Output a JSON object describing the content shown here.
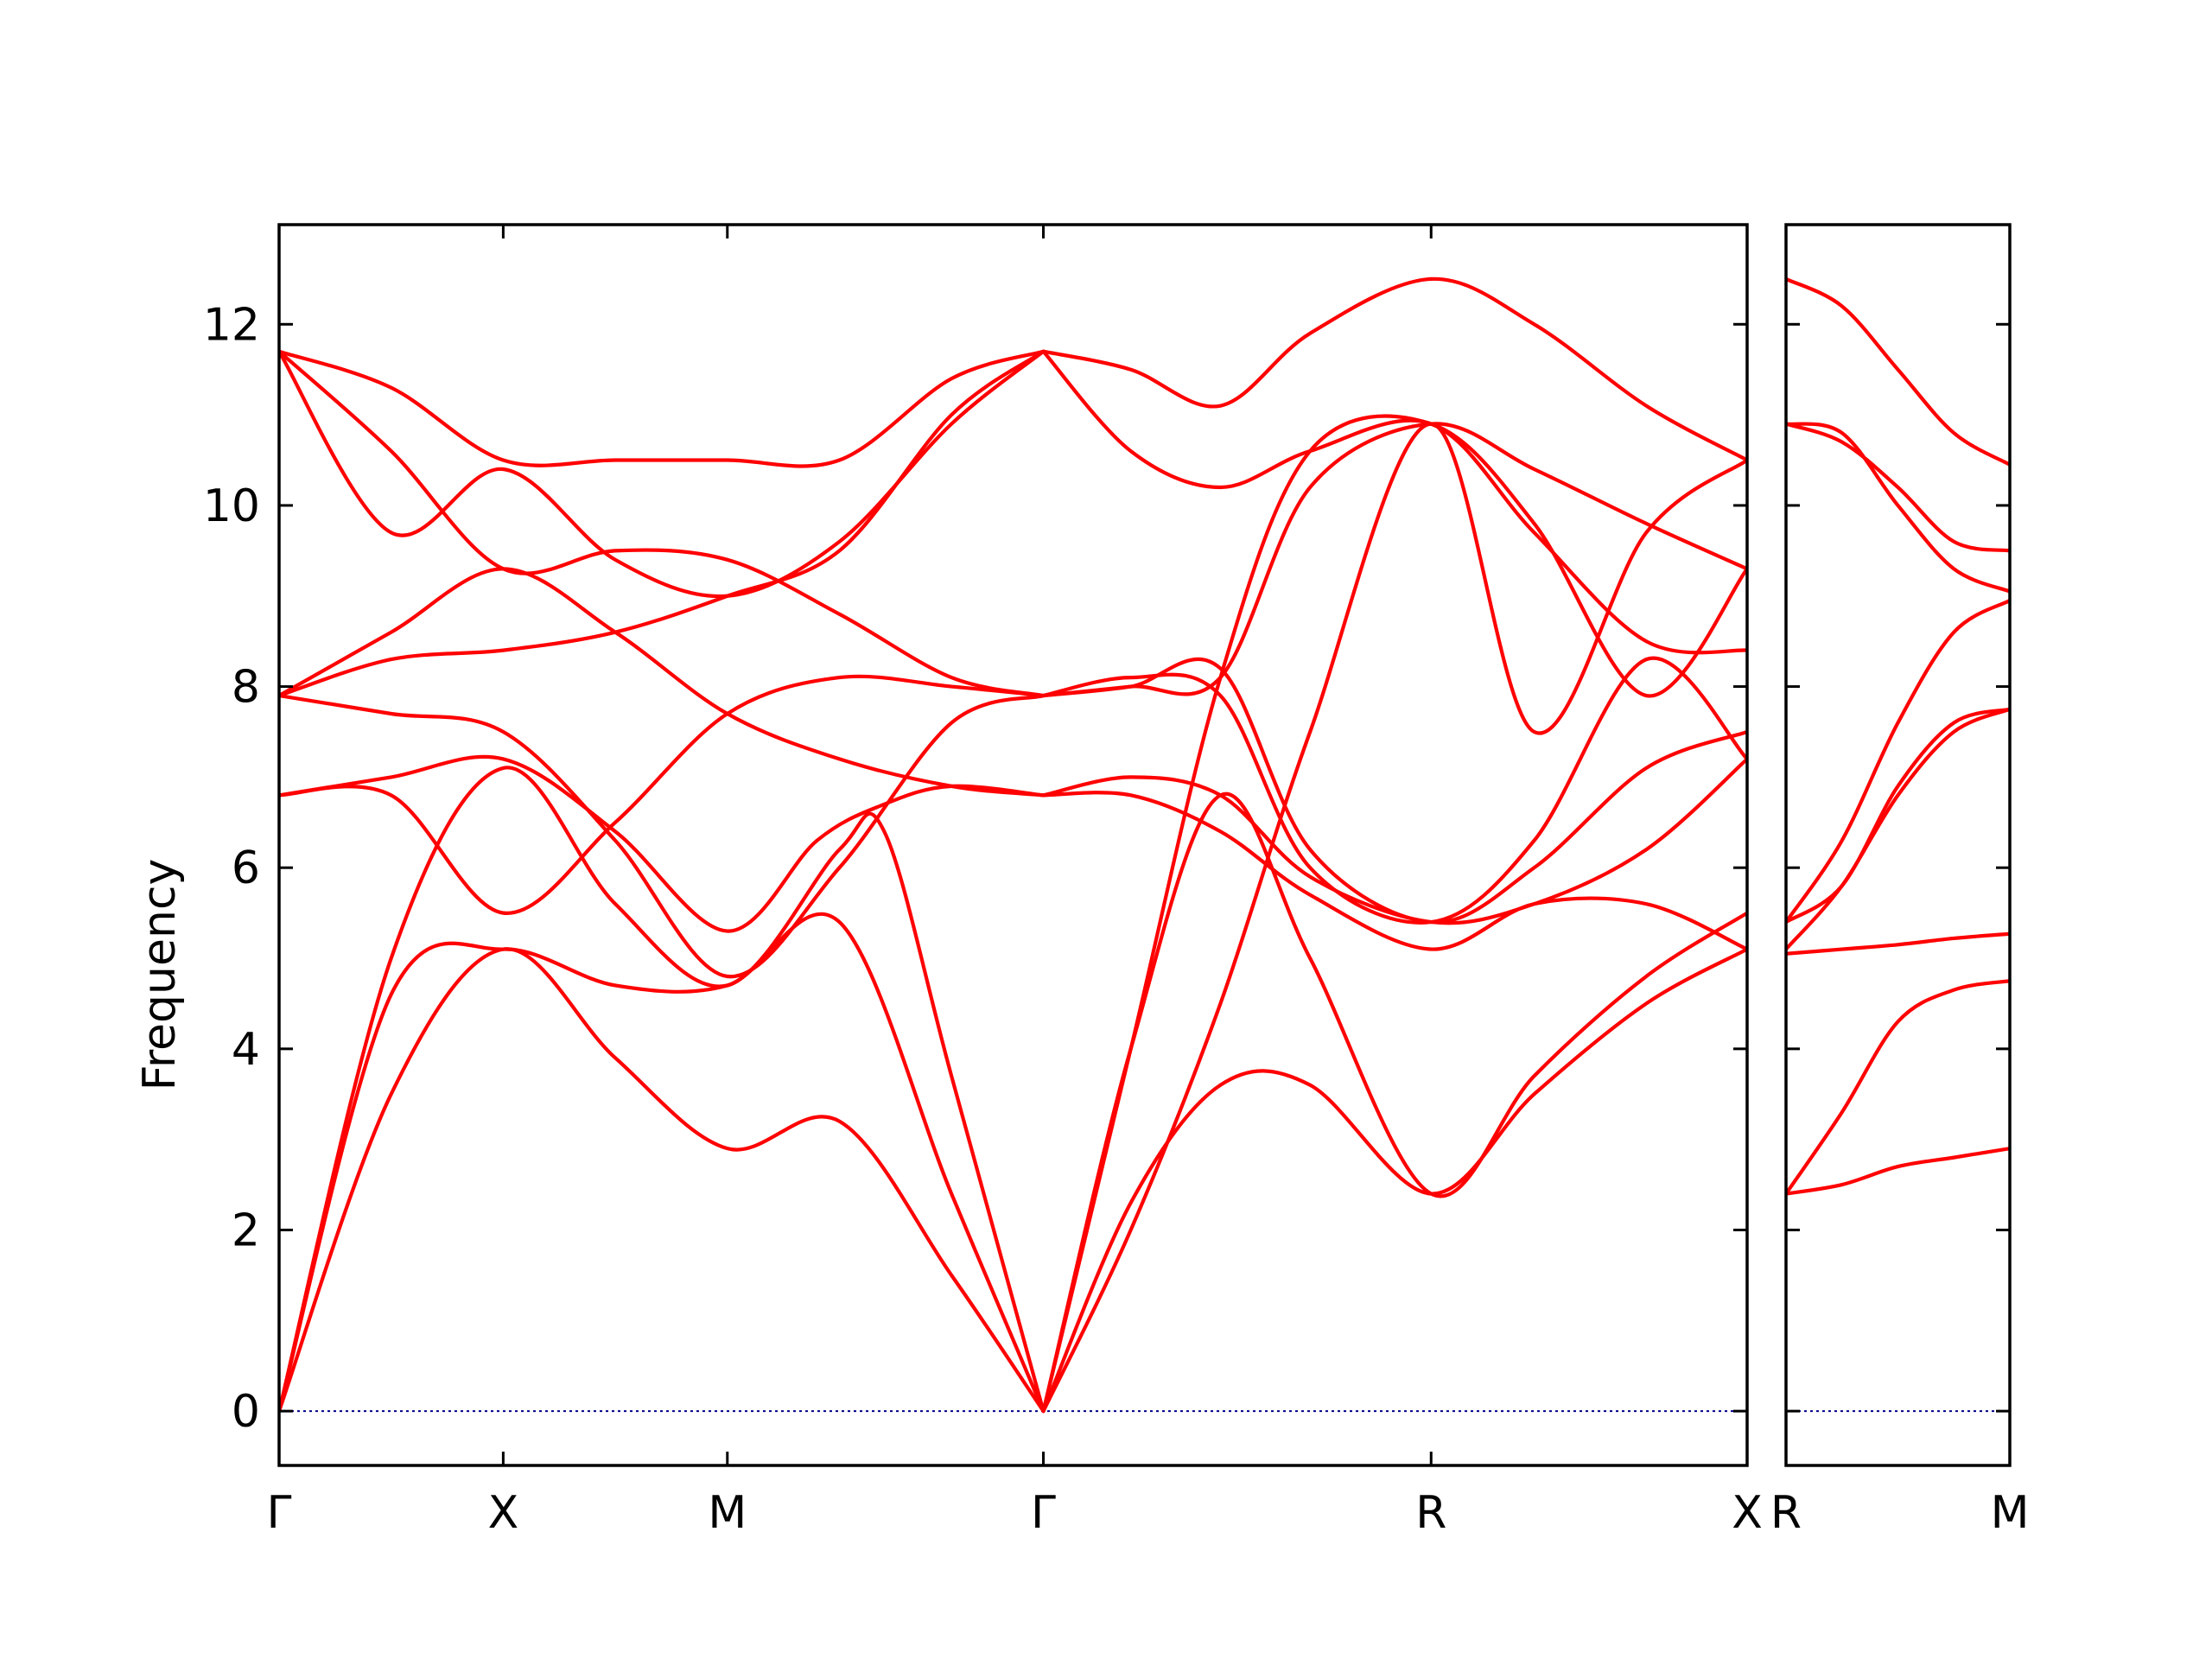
{
  "chart_data": [
    {
      "type": "line",
      "panel": "left",
      "xlabel": "",
      "ylabel": "Frequency",
      "ylim": [
        -0.6,
        13.1
      ],
      "yticks": [
        0,
        2,
        4,
        6,
        8,
        10,
        12
      ],
      "ytick_labels": [
        "0",
        "2",
        "4",
        "6",
        "8",
        "10",
        "12"
      ],
      "path_labels": [
        "Γ",
        "X",
        "M",
        "Γ",
        "R",
        "X"
      ],
      "path_positions": [
        0,
        1,
        2,
        3.41,
        5.14,
        6.55
      ],
      "xlim": [
        0,
        6.55
      ],
      "line_color": "#ff0000",
      "zero_line_color": "#00008b",
      "series": [
        {
          "x": [
            0,
            0.5,
            1,
            1.5,
            2,
            2.5,
            3,
            3.41
          ],
          "values": [
            0,
            3.5,
            5.1,
            3.9,
            2.9,
            3.2,
            1.5,
            0
          ]
        },
        {
          "x": [
            0,
            0.5,
            1,
            1.5,
            2,
            2.5,
            3,
            3.41
          ],
          "values": [
            0,
            4.6,
            5.1,
            4.7,
            4.7,
            5.4,
            2.4,
            0
          ]
        },
        {
          "x": [
            0,
            0.5,
            1,
            1.5,
            2,
            2.5,
            2.7,
            3,
            3.41
          ],
          "values": [
            0,
            5.0,
            7.1,
            5.6,
            4.7,
            6.2,
            6.4,
            3.7,
            0
          ]
        },
        {
          "x": [
            0,
            0.5,
            1,
            1.5,
            2,
            2.4,
            2.7,
            3,
            3.41
          ],
          "values": [
            6.8,
            7.0,
            7.2,
            6.4,
            5.3,
            6.3,
            6.7,
            6.9,
            6.8
          ]
        },
        {
          "x": [
            0,
            0.5,
            1,
            1.5,
            2,
            2.5,
            3,
            3.41
          ],
          "values": [
            6.8,
            6.8,
            5.5,
            6.5,
            7.7,
            8.1,
            8.0,
            7.9
          ]
        },
        {
          "x": [
            0,
            0.5,
            1,
            1.5,
            2,
            2.5,
            3,
            3.41
          ],
          "values": [
            7.9,
            7.7,
            7.5,
            6.3,
            4.8,
            6.0,
            7.6,
            7.9
          ]
        },
        {
          "x": [
            0,
            0.5,
            1,
            1.5,
            2,
            2.5,
            3,
            3.41
          ],
          "values": [
            7.9,
            8.6,
            9.3,
            8.6,
            7.7,
            7.2,
            6.9,
            6.8
          ]
        },
        {
          "x": [
            0,
            0.5,
            1,
            1.5,
            2,
            2.5,
            3,
            3.41
          ],
          "values": [
            7.9,
            8.3,
            8.4,
            8.6,
            9.0,
            9.5,
            11.0,
            11.7
          ]
        },
        {
          "x": [
            0,
            0.5,
            1,
            1.5,
            2,
            2.5,
            3,
            3.41
          ],
          "values": [
            11.7,
            10.6,
            9.3,
            9.5,
            9.4,
            8.8,
            8.1,
            7.9
          ]
        },
        {
          "x": [
            0,
            0.5,
            1,
            1.5,
            2,
            2.5,
            3,
            3.41
          ],
          "values": [
            11.7,
            9.7,
            10.4,
            9.4,
            9.0,
            9.6,
            10.9,
            11.7
          ]
        },
        {
          "x": [
            0,
            0.5,
            1,
            1.5,
            2,
            2.5,
            3,
            3.41
          ],
          "values": [
            11.7,
            11.3,
            10.5,
            10.5,
            10.5,
            10.5,
            11.4,
            11.7
          ]
        },
        {
          "x": [
            3.41,
            3.8,
            4.2,
            4.6,
            5.14,
            5.6,
            6.1,
            6.55
          ],
          "values": [
            0,
            2.3,
            3.6,
            3.6,
            2.4,
            3.5,
            4.5,
            5.1
          ]
        },
        {
          "x": [
            3.41,
            3.8,
            4.2,
            4.6,
            5.14,
            5.6,
            6.1,
            6.55
          ],
          "values": [
            0,
            4.0,
            6.8,
            5.0,
            2.4,
            3.7,
            4.8,
            5.5
          ]
        },
        {
          "x": [
            3.41,
            3.8,
            4.2,
            4.6,
            5.14,
            5.6,
            6.1,
            6.55
          ],
          "values": [
            6.8,
            6.8,
            6.4,
            5.7,
            5.1,
            5.6,
            5.6,
            5.1
          ]
        },
        {
          "x": [
            3.41,
            3.8,
            4.2,
            4.6,
            5.14,
            5.6,
            6.1,
            6.55
          ],
          "values": [
            6.8,
            7.0,
            6.8,
            5.9,
            5.4,
            5.6,
            6.2,
            7.2
          ]
        },
        {
          "x": [
            3.41,
            3.8,
            4.2,
            4.6,
            5.14,
            5.6,
            6.1,
            6.55
          ],
          "values": [
            7.9,
            8.0,
            8.2,
            6.2,
            5.4,
            6.0,
            7.1,
            7.5
          ]
        },
        {
          "x": [
            3.41,
            3.8,
            4.2,
            4.6,
            5.14,
            5.6,
            6.1,
            6.55
          ],
          "values": [
            7.9,
            8.1,
            7.9,
            6.0,
            5.4,
            6.3,
            8.3,
            7.2
          ]
        },
        {
          "x": [
            3.41,
            3.8,
            4.2,
            4.6,
            5.14,
            5.6,
            6.1,
            6.55
          ],
          "values": [
            0,
            4.0,
            8.1,
            10.6,
            10.9,
            9.8,
            7.9,
            9.3
          ]
        },
        {
          "x": [
            3.41,
            3.8,
            4.2,
            4.6,
            5.14,
            5.6,
            6.1,
            6.55
          ],
          "values": [
            11.7,
            10.6,
            10.2,
            10.6,
            10.9,
            9.7,
            8.5,
            8.4
          ]
        },
        {
          "x": [
            3.41,
            3.8,
            4.2,
            4.6,
            5.14,
            5.6,
            6.1,
            6.55
          ],
          "values": [
            11.7,
            11.5,
            11.1,
            11.9,
            12.5,
            12.0,
            11.1,
            10.5
          ]
        },
        {
          "x": [
            3.41,
            3.8,
            4.2,
            4.6,
            5.14,
            5.6,
            6.1,
            6.55
          ],
          "values": [
            7.9,
            8.0,
            8.1,
            10.2,
            10.9,
            10.4,
            9.8,
            9.3
          ]
        },
        {
          "x": [
            3.41,
            3.8,
            4.2,
            4.6,
            5.14,
            5.6,
            6.1,
            6.55
          ],
          "values": [
            0,
            2.0,
            4.5,
            7.5,
            10.9,
            7.5,
            9.7,
            10.5
          ]
        }
      ]
    },
    {
      "type": "line",
      "panel": "right",
      "ylim": [
        -0.6,
        13.1
      ],
      "path_labels": [
        "R",
        "M"
      ],
      "path_positions": [
        0,
        1
      ],
      "xlim": [
        0,
        1
      ],
      "line_color": "#ff0000",
      "zero_line_color": "#00008b",
      "series": [
        {
          "x": [
            0,
            0.25,
            0.5,
            0.75,
            1
          ],
          "values": [
            2.4,
            2.5,
            2.7,
            2.8,
            2.9
          ]
        },
        {
          "x": [
            0,
            0.25,
            0.5,
            0.75,
            1
          ],
          "values": [
            2.4,
            3.3,
            4.3,
            4.65,
            4.75
          ]
        },
        {
          "x": [
            0,
            0.25,
            0.5,
            0.75,
            1
          ],
          "values": [
            5.05,
            5.1,
            5.15,
            5.22,
            5.27
          ]
        },
        {
          "x": [
            0,
            0.25,
            0.5,
            0.75,
            1
          ],
          "values": [
            5.1,
            5.8,
            6.8,
            7.5,
            7.75
          ]
        },
        {
          "x": [
            0,
            0.25,
            0.5,
            0.75,
            1
          ],
          "values": [
            5.4,
            5.8,
            6.9,
            7.6,
            7.75
          ]
        },
        {
          "x": [
            0,
            0.25,
            0.5,
            0.75,
            1
          ],
          "values": [
            5.4,
            6.3,
            7.6,
            8.6,
            8.95
          ]
        },
        {
          "x": [
            0,
            0.25,
            0.5,
            0.75,
            1
          ],
          "values": [
            10.9,
            10.8,
            10.0,
            9.3,
            9.05
          ]
        },
        {
          "x": [
            0,
            0.25,
            0.5,
            0.75,
            1
          ],
          "values": [
            10.9,
            10.7,
            10.2,
            9.6,
            9.5
          ]
        },
        {
          "x": [
            0,
            0.25,
            0.5,
            0.75,
            1
          ],
          "values": [
            12.5,
            12.2,
            11.5,
            10.8,
            10.45
          ]
        }
      ]
    }
  ]
}
